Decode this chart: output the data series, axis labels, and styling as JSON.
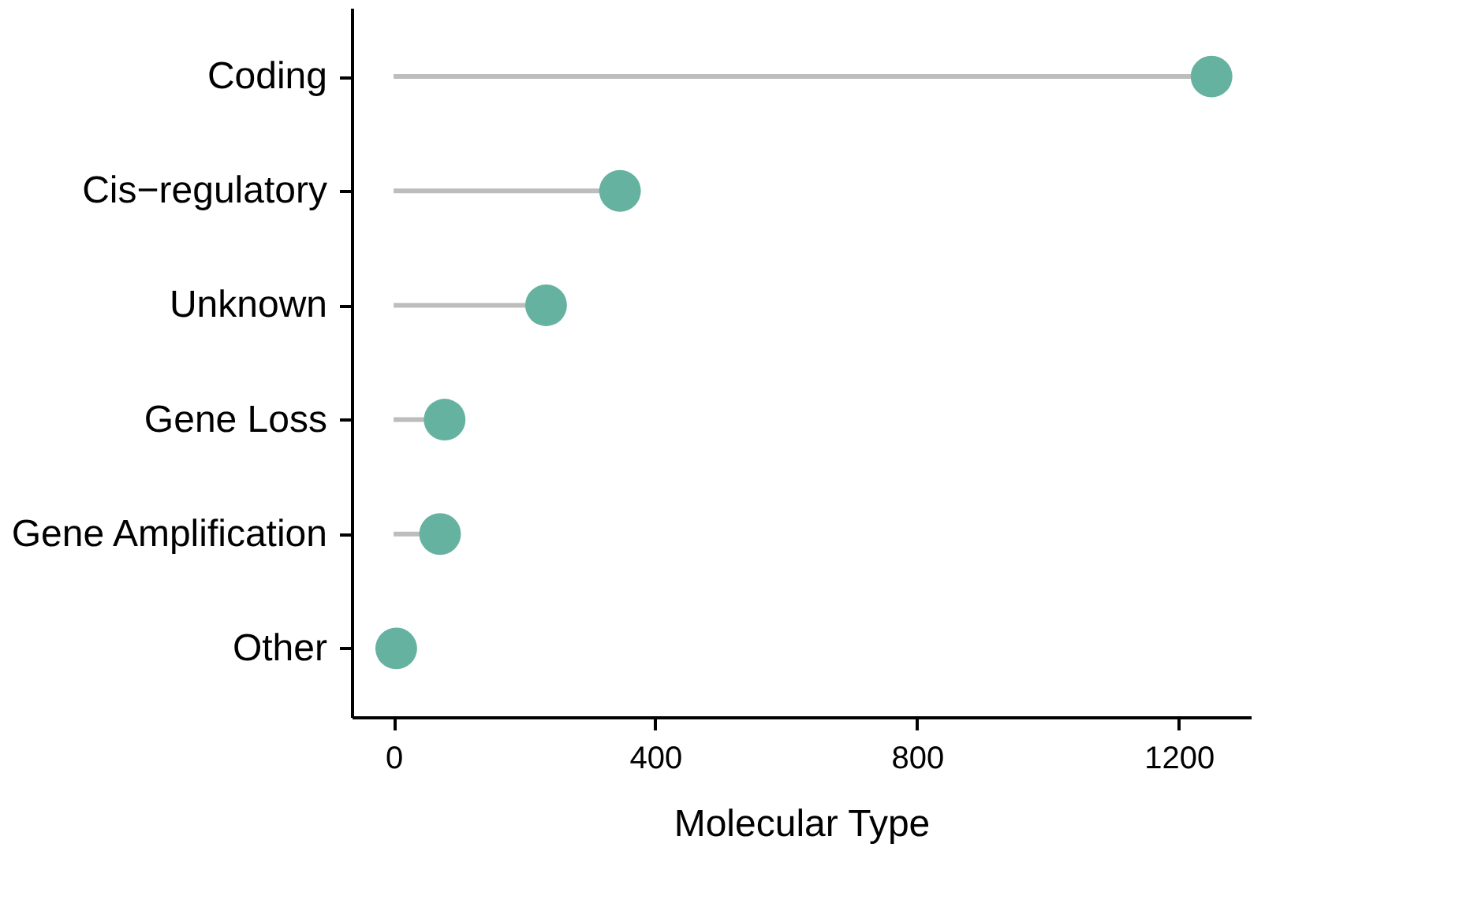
{
  "chart_data": {
    "type": "lollipop",
    "orientation": "horizontal",
    "xlabel": "Molecular Type",
    "categories": [
      "Coding",
      "Cis−regulatory",
      "Unknown",
      "Gene Loss",
      "Gene Amplification",
      "Other"
    ],
    "values": [
      1250,
      346,
      233,
      78,
      71,
      4
    ],
    "color": "#66b2a0",
    "xlim": [
      -64,
      1310
    ],
    "xticks": [
      0,
      400,
      800,
      1200
    ],
    "grid": false
  }
}
